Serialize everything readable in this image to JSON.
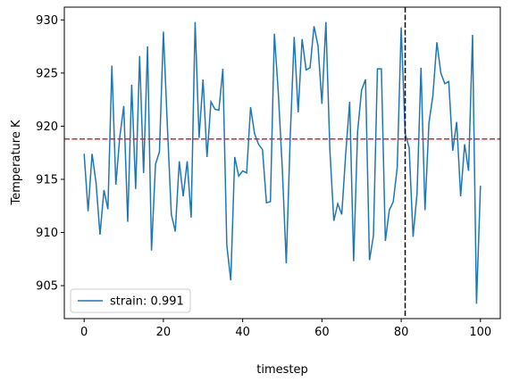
{
  "chart_data": {
    "type": "line",
    "xlabel": "timestep",
    "ylabel": "Temperature K",
    "x": [
      0,
      1,
      2,
      3,
      4,
      5,
      6,
      7,
      8,
      9,
      10,
      11,
      12,
      13,
      14,
      15,
      16,
      17,
      18,
      19,
      20,
      21,
      22,
      23,
      24,
      25,
      26,
      27,
      28,
      29,
      30,
      31,
      32,
      33,
      34,
      35,
      36,
      37,
      38,
      39,
      40,
      41,
      42,
      43,
      44,
      45,
      46,
      47,
      48,
      49,
      50,
      51,
      52,
      53,
      54,
      55,
      56,
      57,
      58,
      59,
      60,
      61,
      62,
      63,
      64,
      65,
      66,
      67,
      68,
      69,
      70,
      71,
      72,
      73,
      74,
      75,
      76,
      77,
      78,
      79,
      80,
      81,
      82,
      83,
      84,
      85,
      86,
      87,
      88,
      89,
      90,
      91,
      92,
      93,
      94,
      95,
      96,
      97,
      98,
      99,
      100
    ],
    "series": [
      {
        "name": "strain: 0.991",
        "color": "#1f77b4",
        "values": [
          917.4,
          912,
          917.4,
          914.7,
          909.8,
          914,
          912.2,
          925.7,
          914.5,
          919,
          921.9,
          911,
          923.9,
          914.1,
          926.6,
          915.6,
          927.5,
          908.3,
          916.4,
          917.6,
          928.9,
          920,
          911.7,
          910.1,
          916.7,
          913.4,
          916.7,
          911.4,
          929.8,
          918.9,
          924.4,
          917.1,
          922.3,
          921.6,
          921.5,
          925.4,
          908.8,
          905.5,
          917.1,
          915.3,
          915.8,
          915.6,
          921.8,
          919.3,
          918.3,
          917.8,
          912.8,
          912.9,
          928.7,
          923.1,
          916,
          907.1,
          919,
          928.4,
          921.3,
          928.2,
          925.3,
          925.5,
          929.4,
          927.6,
          922.1,
          929.8,
          917.8,
          911.1,
          912.7,
          911.7,
          917.4,
          922.3,
          907.3,
          919.5,
          923.4,
          924.4,
          907.4,
          909.7,
          925.4,
          925.4,
          909.2,
          912.1,
          912.9,
          916.1,
          929.3,
          919.3,
          918,
          909.6,
          913.7,
          925.5,
          912.1,
          920.3,
          922.9,
          927.9,
          925,
          924,
          924.2,
          917.7,
          920.4,
          913.4,
          918.3,
          915.8,
          928.6,
          903.3,
          914.4
        ]
      }
    ],
    "hline": {
      "value": 918.8,
      "color": "#d62728"
    },
    "vline": {
      "value": 81,
      "color": "#000000"
    },
    "xlim": [
      -5,
      105
    ],
    "ylim": [
      901.9,
      931.2
    ],
    "xticks": [
      0,
      20,
      40,
      60,
      80,
      100
    ],
    "yticks": [
      905,
      910,
      915,
      920,
      925,
      930
    ],
    "legend": "lower left",
    "grid": false
  }
}
